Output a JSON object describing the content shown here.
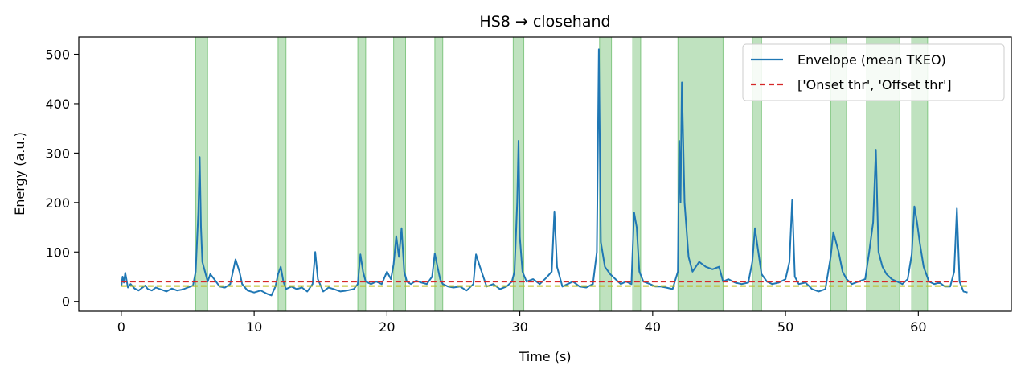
{
  "chart_data": {
    "type": "line",
    "title": "HS8 → closehand",
    "xlabel": "Time (s)",
    "ylabel": "Energy (a.u.)",
    "xlim": [
      -3.2,
      67.0
    ],
    "ylim": [
      -20,
      535
    ],
    "xticks": [
      0,
      10,
      20,
      30,
      40,
      50,
      60
    ],
    "xtick_labels": [
      "0",
      "10",
      "20",
      "30",
      "40",
      "50",
      "60"
    ],
    "yticks": [
      0,
      100,
      200,
      300,
      400,
      500
    ],
    "ytick_labels": [
      "0",
      "100",
      "200",
      "300",
      "400",
      "500"
    ],
    "grid": false,
    "legend_position": "top-right",
    "colors": {
      "envelope": "#1f77b4",
      "onset_thr": "#d62728",
      "offset_thr": "#bcbd22",
      "active": "#2ca02c"
    },
    "thresholds": {
      "onset": 40,
      "offset": 31
    },
    "active_segments": [
      [
        5.6,
        6.5
      ],
      [
        11.8,
        12.4
      ],
      [
        17.8,
        18.4
      ],
      [
        20.5,
        21.4
      ],
      [
        23.6,
        24.2
      ],
      [
        29.5,
        30.3
      ],
      [
        36.0,
        36.9
      ],
      [
        38.5,
        39.1
      ],
      [
        41.9,
        45.3
      ],
      [
        47.5,
        48.2
      ],
      [
        53.4,
        54.6
      ],
      [
        56.1,
        58.6
      ],
      [
        59.5,
        60.7
      ]
    ],
    "series": [
      {
        "name": "Envelope (mean TKEO)",
        "x": [
          0.0,
          0.1,
          0.2,
          0.3,
          0.5,
          0.7,
          1.0,
          1.3,
          1.6,
          1.8,
          2.0,
          2.3,
          2.6,
          3.0,
          3.4,
          3.8,
          4.2,
          4.6,
          5.0,
          5.4,
          5.6,
          5.8,
          5.9,
          6.0,
          6.1,
          6.3,
          6.5,
          6.7,
          7.0,
          7.4,
          7.8,
          8.2,
          8.6,
          8.9,
          9.1,
          9.5,
          10.0,
          10.5,
          11.0,
          11.3,
          11.6,
          11.8,
          12.0,
          12.2,
          12.4,
          12.8,
          13.2,
          13.6,
          14.0,
          14.4,
          14.6,
          14.8,
          15.2,
          15.6,
          16.0,
          16.5,
          17.0,
          17.5,
          17.8,
          18.0,
          18.2,
          18.4,
          18.8,
          19.2,
          19.6,
          20.0,
          20.3,
          20.5,
          20.7,
          20.9,
          21.1,
          21.3,
          21.5,
          21.8,
          22.2,
          22.6,
          23.0,
          23.4,
          23.6,
          23.8,
          24.0,
          24.2,
          24.6,
          25.0,
          25.5,
          26.0,
          26.5,
          26.7,
          27.0,
          27.5,
          28.0,
          28.5,
          29.0,
          29.4,
          29.6,
          29.8,
          29.9,
          30.0,
          30.2,
          30.5,
          31.0,
          31.5,
          32.0,
          32.4,
          32.6,
          32.8,
          33.2,
          33.6,
          34.0,
          34.5,
          35.0,
          35.5,
          35.8,
          35.95,
          36.1,
          36.4,
          36.8,
          37.2,
          37.6,
          38.0,
          38.4,
          38.6,
          38.8,
          39.0,
          39.3,
          39.8,
          40.2,
          40.6,
          41.0,
          41.5,
          41.9,
          42.0,
          42.1,
          42.2,
          42.4,
          42.7,
          43.0,
          43.5,
          44.0,
          44.5,
          45.0,
          45.3,
          45.7,
          46.2,
          46.7,
          47.2,
          47.5,
          47.7,
          47.9,
          48.2,
          48.6,
          49.0,
          49.5,
          50.0,
          50.3,
          50.5,
          50.7,
          51.0,
          51.5,
          52.0,
          52.5,
          53.0,
          53.4,
          53.6,
          53.8,
          54.0,
          54.3,
          54.6,
          55.0,
          55.5,
          56.0,
          56.3,
          56.6,
          56.8,
          57.0,
          57.3,
          57.6,
          58.0,
          58.4,
          58.8,
          59.2,
          59.5,
          59.7,
          59.9,
          60.1,
          60.4,
          60.8,
          61.2,
          61.6,
          62.0,
          62.4,
          62.7,
          62.9,
          63.1,
          63.4,
          63.7
        ],
        "y": [
          30,
          50,
          38,
          58,
          28,
          35,
          26,
          22,
          28,
          32,
          25,
          22,
          28,
          24,
          20,
          26,
          22,
          24,
          28,
          32,
          60,
          180,
          292,
          150,
          80,
          60,
          40,
          55,
          45,
          30,
          28,
          35,
          85,
          60,
          35,
          22,
          18,
          22,
          15,
          12,
          30,
          55,
          70,
          40,
          25,
          30,
          25,
          28,
          20,
          35,
          100,
          45,
          20,
          28,
          25,
          20,
          22,
          25,
          35,
          95,
          60,
          40,
          35,
          40,
          35,
          60,
          45,
          75,
          132,
          90,
          148,
          60,
          40,
          35,
          42,
          38,
          35,
          50,
          97,
          70,
          45,
          35,
          30,
          28,
          30,
          22,
          35,
          95,
          70,
          30,
          35,
          25,
          30,
          40,
          60,
          200,
          325,
          130,
          60,
          40,
          45,
          35,
          48,
          60,
          182,
          70,
          30,
          35,
          40,
          30,
          28,
          35,
          100,
          510,
          120,
          70,
          55,
          45,
          35,
          40,
          35,
          180,
          150,
          60,
          40,
          35,
          30,
          30,
          28,
          25,
          60,
          325,
          200,
          443,
          200,
          90,
          60,
          80,
          70,
          65,
          70,
          40,
          45,
          38,
          35,
          38,
          80,
          148,
          110,
          55,
          40,
          35,
          38,
          45,
          80,
          205,
          50,
          35,
          38,
          25,
          20,
          25,
          90,
          140,
          120,
          100,
          60,
          45,
          35,
          40,
          45,
          100,
          160,
          307,
          100,
          70,
          55,
          45,
          40,
          35,
          45,
          95,
          192,
          160,
          120,
          70,
          40,
          35,
          38,
          30,
          30,
          60,
          188,
          40,
          20,
          18
        ]
      },
      {
        "name": "['Onset thr', 'Offset thr']",
        "x": [
          0.0,
          63.7
        ],
        "y": [
          40,
          40
        ]
      }
    ]
  }
}
